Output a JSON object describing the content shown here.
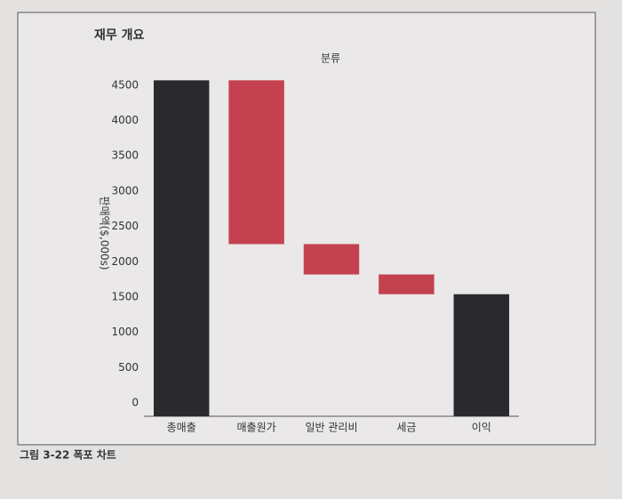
{
  "chart_data": {
    "type": "waterfall",
    "title": "재무 개요",
    "x_label": "분류",
    "y_label": "판매액($,000s)",
    "caption": "그림 3-22  폭포 차트",
    "categories": [
      "총매출",
      "매출원가",
      "일반 관리비",
      "세금",
      "이익"
    ],
    "values": [
      4570,
      -2320,
      -430,
      -280,
      1540
    ],
    "measure": [
      "total",
      "relative",
      "relative",
      "relative",
      "total"
    ],
    "total_color": "#2a2a2e",
    "decrease_color": "#c4424f",
    "ylim": [
      0,
      4700
    ],
    "yticks": [
      0,
      500,
      1000,
      1500,
      2000,
      2500,
      3000,
      3500,
      4000,
      4500
    ],
    "grid": false
  }
}
